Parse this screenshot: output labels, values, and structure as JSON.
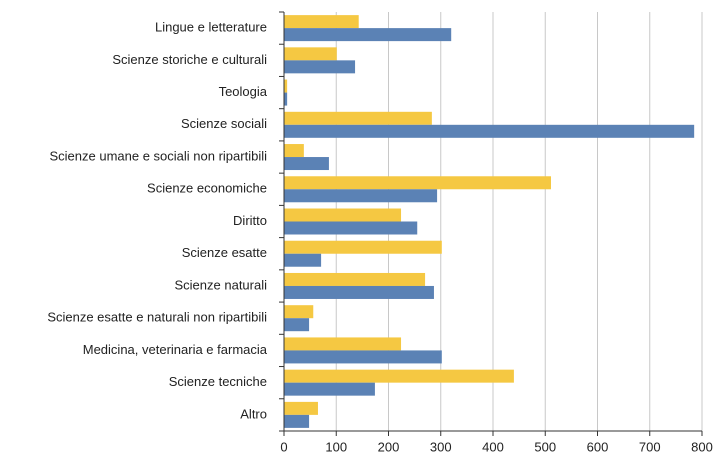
{
  "chart_data": {
    "type": "barh",
    "categories": [
      "Lingue e letterature",
      "Scienze storiche e culturali",
      "Teologia",
      "Scienze sociali",
      "Scienze umane e sociali non ripartibili",
      "Scienze economiche",
      "Diritto",
      "Scienze esatte",
      "Scienze naturali",
      "Scienze esatte e naturali non ripartibili",
      "Medicina, veterinaria e farmacia",
      "Scienze tecniche",
      "Altro"
    ],
    "series": [
      {
        "color": "#f5c842",
        "values": [
          143,
          101,
          6,
          283,
          38,
          511,
          224,
          302,
          270,
          56,
          224,
          440,
          65
        ]
      },
      {
        "color": "#5b82b5",
        "values": [
          320,
          136,
          6,
          785,
          86,
          293,
          255,
          71,
          287,
          48,
          302,
          174,
          48
        ]
      }
    ],
    "xlim": [
      0,
      800
    ],
    "xticks": [
      0,
      100,
      200,
      300,
      400,
      500,
      600,
      700,
      800
    ],
    "grid": true
  }
}
